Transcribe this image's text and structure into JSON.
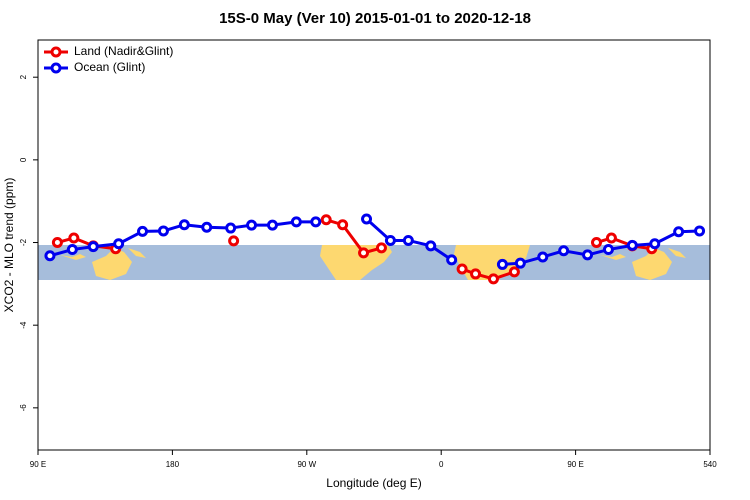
{
  "chart_data": {
    "type": "line",
    "title": "15S-0 May (Ver 10)   2015-01-01 to 2020-12-18",
    "xlabel": "Longitude (deg E)",
    "ylabel": "XCO2 - MLO trend (ppm)",
    "xlim": [
      90,
      540
    ],
    "xticks": [
      {
        "value": 90,
        "label": "90 E"
      },
      180,
      {
        "value": 270,
        "label": "90 W"
      },
      {
        "value": 360,
        "label": "0"
      },
      {
        "value": 450,
        "label": "90 E"
      },
      540
    ],
    "ylim": [
      -7.02,
      2.9
    ],
    "yticks": [
      2,
      0,
      -2,
      -4,
      -6
    ],
    "legend": "top-left",
    "series": [
      {
        "name": "Land (Nadir&Glint)",
        "color": "#ee0000",
        "x": [
          103,
          114,
          127,
          142,
          null,
          221,
          null,
          283,
          294,
          308,
          320,
          null,
          374,
          383,
          395,
          409,
          null,
          464,
          474,
          488,
          501
        ],
        "values": [
          -2.0,
          -1.89,
          -2.08,
          -2.15,
          null,
          -1.96,
          null,
          -1.45,
          -1.57,
          -2.25,
          -2.13,
          null,
          -2.64,
          -2.76,
          -2.88,
          -2.71,
          null,
          -2.0,
          -1.89,
          -2.08,
          -2.15
        ]
      },
      {
        "name": "Ocean (Glint)",
        "color": "#0000ee",
        "x": [
          98,
          113,
          127,
          144,
          160,
          174,
          188,
          203,
          219,
          233,
          247,
          263,
          276,
          null,
          310,
          326,
          338,
          353,
          367,
          null,
          401,
          413,
          428,
          442,
          458,
          472,
          488,
          503,
          519,
          533
        ],
        "values": [
          -2.32,
          -2.17,
          -2.1,
          -2.03,
          -1.73,
          -1.72,
          -1.57,
          -1.63,
          -1.65,
          -1.58,
          -1.58,
          -1.5,
          -1.5,
          null,
          -1.43,
          -1.95,
          -1.95,
          -2.08,
          -2.42,
          null,
          -2.53,
          -2.5,
          -2.35,
          -2.2,
          -2.3,
          -2.17,
          -2.07,
          -2.03,
          -1.74,
          -1.72
        ]
      }
    ]
  }
}
